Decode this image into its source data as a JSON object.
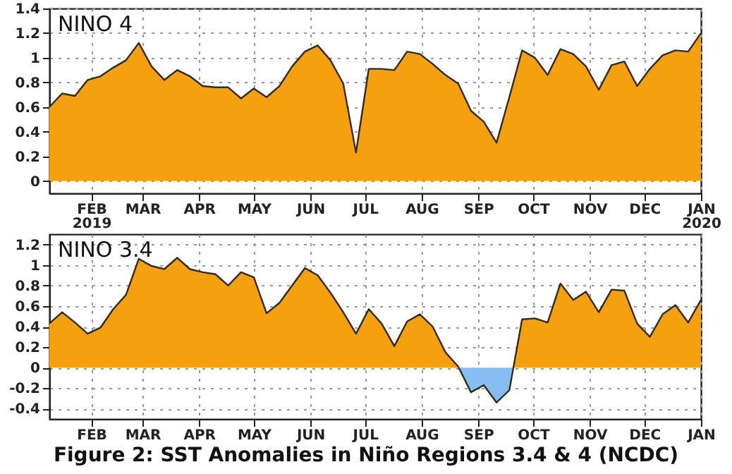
{
  "chart_data": [
    {
      "type": "area",
      "title": "NINO  4",
      "x": [
        "2019-01-09",
        "2019-01-16",
        "2019-01-23",
        "2019-01-30",
        "2019-02-06",
        "2019-02-13",
        "2019-02-20",
        "2019-02-27",
        "2019-03-06",
        "2019-03-13",
        "2019-03-20",
        "2019-03-27",
        "2019-04-03",
        "2019-04-10",
        "2019-04-17",
        "2019-04-24",
        "2019-05-01",
        "2019-05-08",
        "2019-05-15",
        "2019-05-22",
        "2019-05-29",
        "2019-06-05",
        "2019-06-12",
        "2019-06-19",
        "2019-06-26",
        "2019-07-03",
        "2019-07-10",
        "2019-07-17",
        "2019-07-24",
        "2019-07-31",
        "2019-08-07",
        "2019-08-14",
        "2019-08-21",
        "2019-08-28",
        "2019-09-04",
        "2019-09-11",
        "2019-09-18",
        "2019-09-25",
        "2019-10-02",
        "2019-10-09",
        "2019-10-16",
        "2019-10-23",
        "2019-10-30",
        "2019-11-06",
        "2019-11-13",
        "2019-11-20",
        "2019-11-27",
        "2019-12-04",
        "2019-12-11",
        "2019-12-18",
        "2019-12-25",
        "2020-01-01"
      ],
      "series": [
        {
          "color": "#f5a00f",
          "values": [
            0.6,
            0.71,
            0.69,
            0.82,
            0.85,
            0.92,
            0.98,
            1.12,
            0.93,
            0.82,
            0.9,
            0.85,
            0.77,
            0.76,
            0.76,
            0.67,
            0.75,
            0.68,
            0.77,
            0.93,
            1.05,
            1.1,
            0.98,
            0.79,
            0.23,
            0.91,
            0.91,
            0.9,
            1.05,
            1.03,
            0.95,
            0.86,
            0.79,
            0.57,
            0.48,
            0.31,
            0.68,
            1.06,
            1.0,
            0.86,
            1.07,
            1.03,
            0.93,
            0.74,
            0.94,
            0.97,
            0.77,
            0.91,
            1.02,
            1.06,
            1.05,
            1.2
          ]
        }
      ],
      "xlim": [
        "2019-01-09",
        "2020-01-01"
      ],
      "xticks": [
        {
          "value": "2019-02-01",
          "label": "FEB 2019"
        },
        {
          "value": "2019-03-01",
          "label": "MAR"
        },
        {
          "value": "2019-04-01",
          "label": "APR"
        },
        {
          "value": "2019-05-01",
          "label": "MAY"
        },
        {
          "value": "2019-06-01",
          "label": "JUN"
        },
        {
          "value": "2019-07-01",
          "label": "JUL"
        },
        {
          "value": "2019-08-01",
          "label": "AUG"
        },
        {
          "value": "2019-09-01",
          "label": "SEP"
        },
        {
          "value": "2019-10-01",
          "label": "OCT"
        },
        {
          "value": "2019-11-01",
          "label": "NOV"
        },
        {
          "value": "2019-12-01",
          "label": "DEC"
        },
        {
          "value": "2020-01-01",
          "label": "JAN 2020"
        }
      ],
      "ylim": [
        -0.1,
        1.4
      ],
      "yticks": [
        0,
        0.2,
        0.4,
        0.6,
        0.8,
        1,
        1.2,
        1.4
      ],
      "grid": true
    },
    {
      "type": "area",
      "title": "NINO  3.4",
      "x": [
        "2019-01-09",
        "2019-01-16",
        "2019-01-23",
        "2019-01-30",
        "2019-02-06",
        "2019-02-13",
        "2019-02-20",
        "2019-02-27",
        "2019-03-06",
        "2019-03-13",
        "2019-03-20",
        "2019-03-27",
        "2019-04-03",
        "2019-04-10",
        "2019-04-17",
        "2019-04-24",
        "2019-05-01",
        "2019-05-08",
        "2019-05-15",
        "2019-05-22",
        "2019-05-29",
        "2019-06-05",
        "2019-06-12",
        "2019-06-19",
        "2019-06-26",
        "2019-07-03",
        "2019-07-10",
        "2019-07-17",
        "2019-07-24",
        "2019-07-31",
        "2019-08-07",
        "2019-08-14",
        "2019-08-21",
        "2019-08-28",
        "2019-09-04",
        "2019-09-11",
        "2019-09-18",
        "2019-09-25",
        "2019-10-02",
        "2019-10-09",
        "2019-10-16",
        "2019-10-23",
        "2019-10-30",
        "2019-11-06",
        "2019-11-13",
        "2019-11-20",
        "2019-11-27",
        "2019-12-04",
        "2019-12-11",
        "2019-12-18",
        "2019-12-25",
        "2020-01-01"
      ],
      "series": [
        {
          "color": "#f5a00f",
          "colors": [
            "#f5a00f",
            "#f5a00f",
            "#f5a00f",
            "#f5a00f",
            "#f5a00f",
            "#f5a00f",
            "#f5a00f",
            "#f5a00f",
            "#f5a00f",
            "#f5a00f",
            "#f5a00f",
            "#f5a00f",
            "#f5a00f",
            "#f5a00f",
            "#f5a00f",
            "#f5a00f",
            "#f5a00f",
            "#f5a00f",
            "#f5a00f",
            "#f5a00f",
            "#f5a00f",
            "#f5a00f",
            "#f5a00f",
            "#f5a00f",
            "#f5a00f",
            "#f5a00f",
            "#f5a00f",
            "#f5a00f",
            "#f5a00f",
            "#f5a00f",
            "#f5a00f",
            "#f5a00f",
            "#f5a00f",
            "#86bdf2",
            "#86bdf2",
            "#86bdf2",
            "#86bdf2",
            "#f5a00f",
            "#f5a00f",
            "#f5a00f",
            "#f5a00f",
            "#f5a00f",
            "#f5a00f",
            "#f5a00f",
            "#f5a00f",
            "#f5a00f",
            "#f5a00f",
            "#f5a00f",
            "#f5a00f",
            "#f5a00f",
            "#f5a00f",
            "#f5a00f"
          ],
          "values": [
            0.43,
            0.54,
            0.44,
            0.33,
            0.39,
            0.57,
            0.71,
            1.06,
            0.99,
            0.96,
            1.07,
            0.96,
            0.93,
            0.91,
            0.8,
            0.93,
            0.88,
            0.53,
            0.63,
            0.8,
            0.97,
            0.9,
            0.73,
            0.54,
            0.33,
            0.57,
            0.43,
            0.21,
            0.45,
            0.52,
            0.4,
            0.15,
            0.01,
            -0.24,
            -0.17,
            -0.34,
            -0.22,
            0.47,
            0.48,
            0.44,
            0.82,
            0.66,
            0.74,
            0.54,
            0.76,
            0.75,
            0.43,
            0.3,
            0.52,
            0.61,
            0.44,
            0.66
          ]
        }
      ],
      "xlim": [
        "2019-01-09",
        "2020-01-01"
      ],
      "xticks": [
        {
          "value": "2019-02-01",
          "label": "FEB"
        },
        {
          "value": "2019-03-01",
          "label": "MAR"
        },
        {
          "value": "2019-04-01",
          "label": "APR"
        },
        {
          "value": "2019-05-01",
          "label": "MAY"
        },
        {
          "value": "2019-06-01",
          "label": "JUN"
        },
        {
          "value": "2019-07-01",
          "label": "JUL"
        },
        {
          "value": "2019-08-01",
          "label": "AUG"
        },
        {
          "value": "2019-09-01",
          "label": "SEP"
        },
        {
          "value": "2019-10-01",
          "label": "OCT"
        },
        {
          "value": "2019-11-01",
          "label": "NOV"
        },
        {
          "value": "2019-12-01",
          "label": "DEC"
        },
        {
          "value": "2020-01-01",
          "label": "JAN"
        }
      ],
      "ylim": [
        -0.5,
        1.3
      ],
      "yticks": [
        -0.4,
        -0.2,
        0,
        0.2,
        0.4,
        0.6,
        0.8,
        1,
        1.2
      ],
      "grid": true,
      "annotations": [
        "Figure 2: SST Anomalies in Niño Regions 3.4 & 4 (NCDC)"
      ]
    }
  ]
}
